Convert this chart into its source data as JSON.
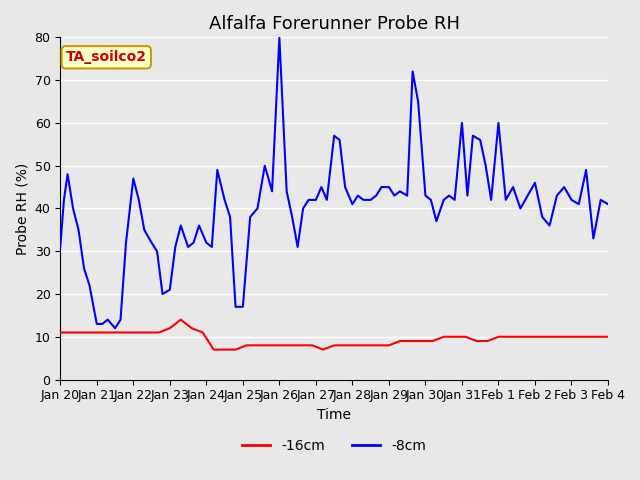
{
  "title": "Alfalfa Forerunner Probe RH",
  "xlabel": "Time",
  "ylabel": "Probe RH (%)",
  "ylim": [
    0,
    80
  ],
  "yticks": [
    0,
    10,
    20,
    30,
    40,
    50,
    60,
    70,
    80
  ],
  "background_color": "#e8e8e8",
  "plot_bg_color": "#e8e8e8",
  "annotation_text": "TA_soilco2",
  "annotation_bg": "#ffffcc",
  "annotation_border": "#cc9900",
  "annotation_text_color": "#cc0000",
  "legend_labels": [
    "-16cm",
    "-8cm"
  ],
  "legend_colors": [
    "#ff0000",
    "#0000ff"
  ],
  "red_line_color": "#ff0000",
  "blue_line_color": "#0000ff",
  "title_fontsize": 13,
  "axis_fontsize": 10,
  "tick_fontsize": 9,
  "grid_color": "#ffffff",
  "xtick_labels": [
    "Jan 20",
    "Jan 21",
    "Jan 22",
    "Jan 23",
    "Jan 24",
    "Jan 25",
    "Jan 26",
    "Jan 27",
    "Jan 28",
    "Jan 29",
    "Jan 30",
    "Jan 31",
    "Feb 1",
    "Feb 2",
    "Feb 3",
    "Feb 4"
  ],
  "red_x": [
    0.0,
    0.3,
    0.6,
    0.9,
    1.2,
    1.5,
    1.8,
    2.1,
    2.4,
    2.7,
    3.0,
    3.3,
    3.6,
    3.9,
    4.2,
    4.5,
    4.8,
    5.1,
    5.4,
    5.7,
    6.0,
    6.3,
    6.6,
    6.9,
    7.2,
    7.5,
    7.8,
    8.1,
    8.4,
    8.7,
    9.0,
    9.3,
    9.6,
    9.9,
    10.2,
    10.5,
    10.8,
    11.1,
    11.4,
    11.7,
    12.0,
    12.3,
    12.6,
    12.9,
    13.2,
    13.5,
    13.8,
    14.1,
    14.4,
    14.7,
    15.0
  ],
  "red_y": [
    11,
    11,
    11,
    11,
    11,
    11,
    11,
    11,
    11,
    11,
    12,
    14,
    12,
    11,
    7,
    7,
    7,
    8,
    8,
    8,
    8,
    8,
    8,
    8,
    7,
    8,
    8,
    8,
    8,
    8,
    8,
    9,
    9,
    9,
    9,
    10,
    10,
    10,
    9,
    9,
    10,
    10,
    10,
    10,
    10,
    10,
    10,
    10,
    10,
    10,
    10
  ],
  "blue_x": [
    0.0,
    0.1,
    0.2,
    0.35,
    0.5,
    0.65,
    0.8,
    1.0,
    1.15,
    1.3,
    1.5,
    1.65,
    1.8,
    2.0,
    2.15,
    2.3,
    2.5,
    2.65,
    2.8,
    3.0,
    3.15,
    3.3,
    3.5,
    3.65,
    3.8,
    4.0,
    4.15,
    4.3,
    4.5,
    4.65,
    4.8,
    5.0,
    5.2,
    5.4,
    5.6,
    5.8,
    6.0,
    6.2,
    6.35,
    6.5,
    6.65,
    6.8,
    7.0,
    7.15,
    7.3,
    7.5,
    7.65,
    7.8,
    8.0,
    8.15,
    8.3,
    8.5,
    8.65,
    8.8,
    9.0,
    9.15,
    9.3,
    9.5,
    9.65,
    9.8,
    10.0,
    10.15,
    10.3,
    10.5,
    10.65,
    10.8,
    11.0,
    11.15,
    11.3,
    11.5,
    11.65,
    11.8,
    12.0,
    12.2,
    12.4,
    12.6,
    12.8,
    13.0,
    13.2,
    13.4,
    13.6,
    13.8,
    14.0,
    14.2,
    14.4,
    14.6,
    14.8,
    15.0
  ],
  "blue_y": [
    31,
    42,
    48,
    40,
    35,
    26,
    22,
    13,
    13,
    14,
    12,
    14,
    32,
    47,
    42,
    35,
    32,
    30,
    20,
    21,
    31,
    36,
    31,
    32,
    36,
    32,
    31,
    49,
    42,
    38,
    17,
    17,
    38,
    40,
    50,
    44,
    80,
    44,
    38,
    31,
    40,
    42,
    42,
    45,
    42,
    57,
    56,
    45,
    41,
    43,
    42,
    42,
    43,
    45,
    45,
    43,
    44,
    43,
    72,
    65,
    43,
    42,
    37,
    42,
    43,
    42,
    60,
    43,
    57,
    56,
    50,
    42,
    60,
    42,
    45,
    40,
    43,
    46,
    38,
    36,
    43,
    45,
    42,
    41,
    49,
    33,
    42,
    41
  ]
}
